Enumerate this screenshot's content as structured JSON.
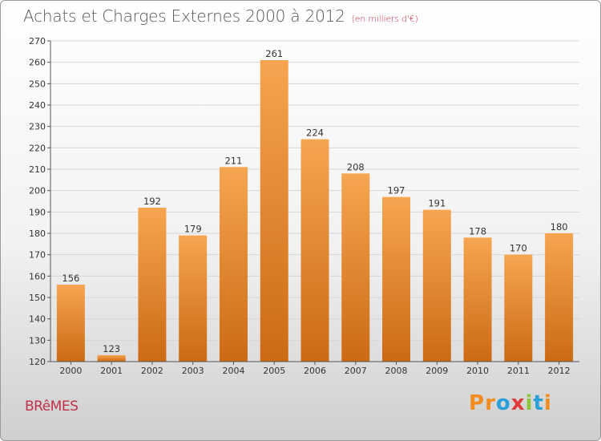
{
  "header": {
    "title": "Achats et Charges Externes 2000 à 2012",
    "subtitle": "(en milliers d'€)"
  },
  "footer": {
    "commune": "BRêMES",
    "logo_text": "Proxiti",
    "logo_colors": [
      "#f28c1e",
      "#f28c1e",
      "#2a9fd8",
      "#e03a3a",
      "#8cc63f",
      "#2a9fd8",
      "#f28c1e"
    ]
  },
  "chart_data": {
    "type": "bar",
    "categories": [
      "2000",
      "2001",
      "2002",
      "2003",
      "2004",
      "2005",
      "2006",
      "2007",
      "2008",
      "2009",
      "2010",
      "2011",
      "2012"
    ],
    "values": [
      156,
      123,
      192,
      179,
      211,
      261,
      224,
      208,
      197,
      191,
      178,
      170,
      180
    ],
    "title": "Achats et Charges Externes 2000 à 2012",
    "subtitle": "(en milliers d'€)",
    "xlabel": "",
    "ylabel": "",
    "ylim": [
      120,
      270
    ],
    "ytick_step": 10,
    "grid": "horizontal",
    "bar_color_top": "#f6a550",
    "bar_color_bottom": "#cc6a14"
  }
}
